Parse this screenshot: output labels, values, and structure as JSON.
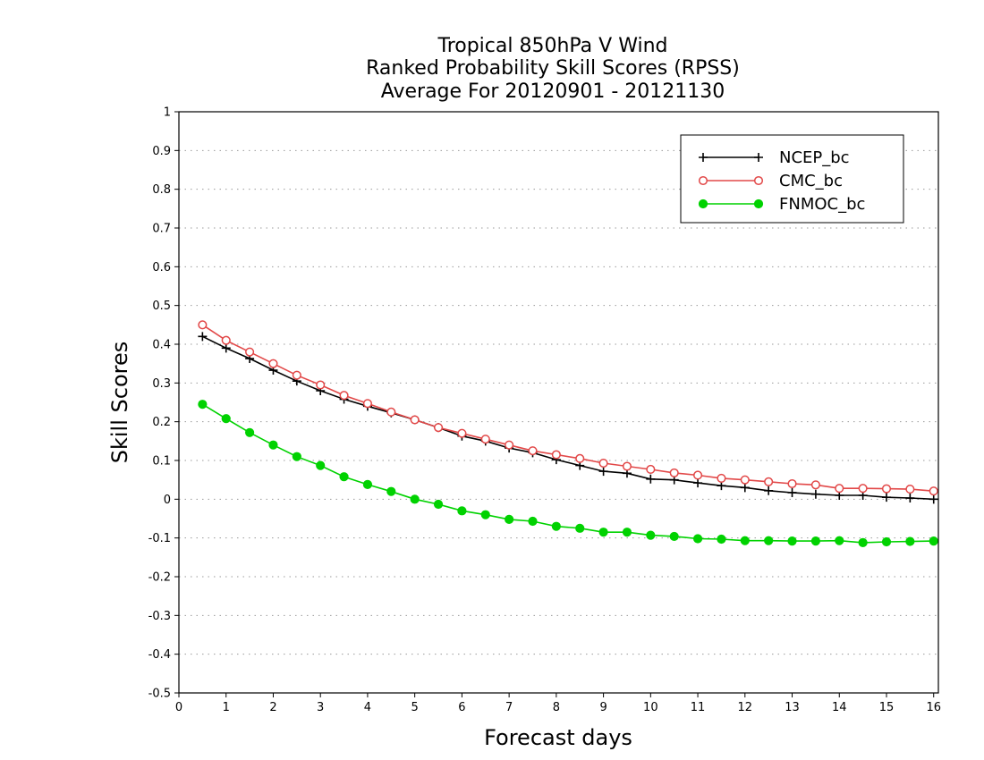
{
  "chart_data": {
    "type": "line",
    "title_lines": [
      "Tropical 850hPa V Wind",
      "Ranked Probability Skill Scores (RPSS)",
      "Average For 20120901 - 20121130"
    ],
    "xlabel": "Forecast days",
    "ylabel": "Skill Scores",
    "xlim": [
      0,
      16.1
    ],
    "ylim": [
      -0.5,
      1
    ],
    "x_ticks": [
      0,
      1,
      2,
      3,
      4,
      5,
      6,
      7,
      8,
      9,
      10,
      11,
      12,
      13,
      14,
      15,
      16
    ],
    "y_ticks": [
      -0.5,
      -0.4,
      -0.3,
      -0.2,
      -0.1,
      0,
      0.1,
      0.2,
      0.3,
      0.4,
      0.5,
      0.6,
      0.7,
      0.8,
      0.9,
      1
    ],
    "y_tick_labels": [
      "-0.5",
      "-0.4",
      "-0.3",
      "-0.2",
      "-0.1",
      "0",
      "0.1",
      "0.2",
      "0.3",
      "0.4",
      "0.5",
      "0.6",
      "0.7",
      "0.8",
      "0.9",
      "1"
    ],
    "grid": "horizontal dotted",
    "legend_position": "top-right",
    "x": [
      0.5,
      1,
      1.5,
      2,
      2.5,
      3,
      3.5,
      4,
      4.5,
      5,
      5.5,
      6,
      6.5,
      7,
      7.5,
      8,
      8.5,
      9,
      9.5,
      10,
      10.5,
      11,
      11.5,
      12,
      12.5,
      13,
      13.5,
      14,
      14.5,
      15,
      15.5,
      16
    ],
    "series": [
      {
        "name": "NCEP_bc",
        "color": "#000000",
        "marker": "plus",
        "values": [
          0.42,
          0.39,
          0.363,
          0.333,
          0.305,
          0.28,
          0.258,
          0.24,
          0.223,
          0.205,
          0.185,
          0.163,
          0.15,
          0.132,
          0.12,
          0.102,
          0.087,
          0.072,
          0.067,
          0.052,
          0.05,
          0.042,
          0.035,
          0.03,
          0.022,
          0.017,
          0.013,
          0.01,
          0.01,
          0.005,
          0.003,
          0.0
        ]
      },
      {
        "name": "CMC_bc",
        "color": "#e24848",
        "marker": "open-circle",
        "values": [
          0.45,
          0.41,
          0.38,
          0.35,
          0.32,
          0.295,
          0.268,
          0.247,
          0.225,
          0.205,
          0.185,
          0.17,
          0.155,
          0.14,
          0.125,
          0.115,
          0.105,
          0.093,
          0.085,
          0.077,
          0.068,
          0.062,
          0.054,
          0.05,
          0.045,
          0.04,
          0.037,
          0.028,
          0.028,
          0.027,
          0.026,
          0.021
        ]
      },
      {
        "name": "FNMOC_bc",
        "color": "#00d200",
        "marker": "filled-circle",
        "values": [
          0.245,
          0.208,
          0.172,
          0.14,
          0.11,
          0.087,
          0.058,
          0.038,
          0.02,
          0.0,
          -0.013,
          -0.03,
          -0.04,
          -0.052,
          -0.057,
          -0.07,
          -0.075,
          -0.085,
          -0.085,
          -0.093,
          -0.096,
          -0.102,
          -0.103,
          -0.107,
          -0.107,
          -0.108,
          -0.108,
          -0.107,
          -0.112,
          -0.11,
          -0.109,
          -0.108
        ]
      }
    ]
  }
}
